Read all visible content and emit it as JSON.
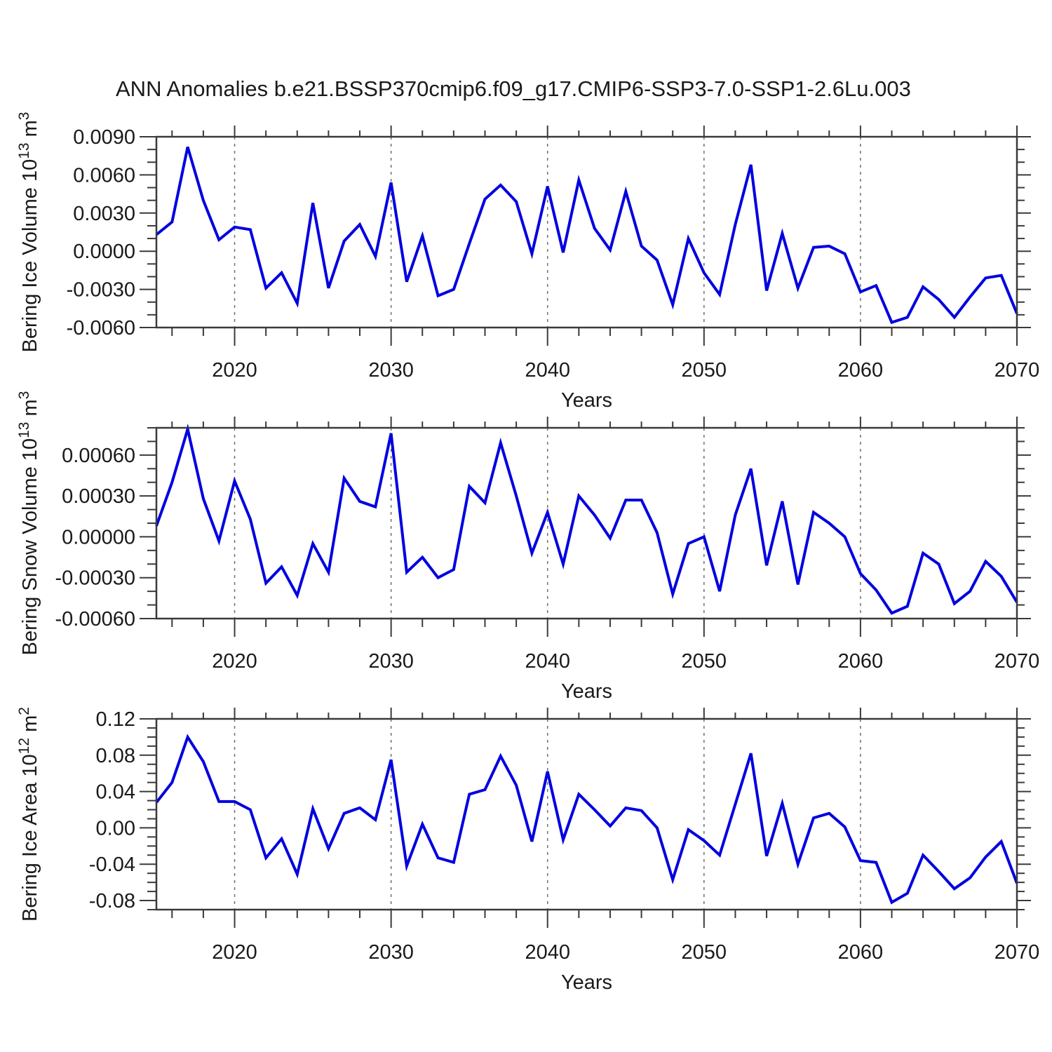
{
  "figure": {
    "title": "ANN Anomalies b.e21.BSSP370cmip6.f09_g17.CMIP6-SSP3-7.0-SSP1-2.6Lu.003"
  },
  "colors": {
    "line": "#0000e0",
    "axis": "#3a3a3a",
    "text": "#1a1a1a",
    "grid": "#6e6e6e",
    "background": "#ffffff"
  },
  "chart_data": [
    {
      "type": "line",
      "name": "bering-ice-volume",
      "ylabel_parts": [
        {
          "text": "Bering Ice Volume 10",
          "sup": false
        },
        {
          "text": "13",
          "sup": true
        },
        {
          "text": " m",
          "sup": false
        },
        {
          "text": "3",
          "sup": true
        }
      ],
      "xlabel": "Years",
      "xlim": [
        2015,
        2070
      ],
      "ylim": [
        -0.006,
        0.009
      ],
      "xtick_values": [
        2020,
        2030,
        2040,
        2050,
        2060,
        2070
      ],
      "xtick_labels": [
        "2020",
        "2030",
        "2040",
        "2050",
        "2060",
        "2070"
      ],
      "x_minor_step": 2,
      "ytick_values": [
        0.009,
        0.006,
        0.003,
        0.0,
        -0.003,
        -0.006
      ],
      "ytick_labels": [
        "0.0090",
        "0.0060",
        "0.0030",
        "0.0000",
        "-0.0030",
        "-0.0060"
      ],
      "y_minor_step": 0.001,
      "grid_years": [
        2020,
        2030,
        2040,
        2050,
        2060
      ],
      "x": [
        2015,
        2016,
        2017,
        2018,
        2019,
        2020,
        2021,
        2022,
        2023,
        2024,
        2025,
        2026,
        2027,
        2028,
        2029,
        2030,
        2031,
        2032,
        2033,
        2034,
        2035,
        2036,
        2037,
        2038,
        2039,
        2040,
        2041,
        2042,
        2043,
        2044,
        2045,
        2046,
        2047,
        2048,
        2049,
        2050,
        2051,
        2052,
        2053,
        2054,
        2055,
        2056,
        2057,
        2058,
        2059,
        2060,
        2061,
        2062,
        2063,
        2064,
        2065,
        2066,
        2067,
        2068,
        2069,
        2070
      ],
      "values": [
        0.0013,
        0.0023,
        0.0082,
        0.004,
        0.0009,
        0.0019,
        0.0017,
        -0.0029,
        -0.0017,
        -0.0041,
        0.0038,
        -0.0029,
        0.0008,
        0.0021,
        -0.0004,
        0.0054,
        -0.0024,
        0.0012,
        -0.0035,
        -0.003,
        0.0006,
        0.0041,
        0.0052,
        0.0039,
        -0.0002,
        0.0051,
        -0.0001,
        0.0056,
        0.0018,
        0.0001,
        0.0047,
        0.0004,
        -0.0007,
        -0.0042,
        0.001,
        -0.0017,
        -0.0034,
        0.0021,
        0.0068,
        -0.0031,
        0.0014,
        -0.0029,
        0.0003,
        0.0004,
        -0.0002,
        -0.0032,
        -0.0027,
        -0.0056,
        -0.0052,
        -0.0028,
        -0.0038,
        -0.0052,
        -0.0036,
        -0.0021,
        -0.0019,
        -0.0049
      ]
    },
    {
      "type": "line",
      "name": "bering-snow-volume",
      "ylabel_parts": [
        {
          "text": "Bering Snow Volume 10",
          "sup": false
        },
        {
          "text": "13",
          "sup": true
        },
        {
          "text": " m",
          "sup": false
        },
        {
          "text": "3",
          "sup": true
        }
      ],
      "xlabel": "Years",
      "xlim": [
        2015,
        2070
      ],
      "ylim": [
        -0.0006,
        0.0008
      ],
      "xtick_values": [
        2020,
        2030,
        2040,
        2050,
        2060,
        2070
      ],
      "xtick_labels": [
        "2020",
        "2030",
        "2040",
        "2050",
        "2060",
        "2070"
      ],
      "x_minor_step": 2,
      "ytick_values": [
        0.0006,
        0.0003,
        0.0,
        -0.0003,
        -0.0006
      ],
      "ytick_labels": [
        "0.00060",
        "0.00030",
        "0.00000",
        "-0.00030",
        "-0.00060"
      ],
      "y_minor_step": 0.0001,
      "grid_years": [
        2020,
        2030,
        2040,
        2050,
        2060
      ],
      "x": [
        2015,
        2016,
        2017,
        2018,
        2019,
        2020,
        2021,
        2022,
        2023,
        2024,
        2025,
        2026,
        2027,
        2028,
        2029,
        2030,
        2031,
        2032,
        2033,
        2034,
        2035,
        2036,
        2037,
        2038,
        2039,
        2040,
        2041,
        2042,
        2043,
        2044,
        2045,
        2046,
        2047,
        2048,
        2049,
        2050,
        2051,
        2052,
        2053,
        2054,
        2055,
        2056,
        2057,
        2058,
        2059,
        2060,
        2061,
        2062,
        2063,
        2064,
        2065,
        2066,
        2067,
        2068,
        2069,
        2070
      ],
      "values": [
        8e-05,
        0.0004,
        0.00079,
        0.00028,
        -3e-05,
        0.00041,
        0.00013,
        -0.00034,
        -0.00022,
        -0.00043,
        -5e-05,
        -0.00026,
        0.00043,
        0.00026,
        0.00022,
        0.00076,
        -0.00026,
        -0.00015,
        -0.0003,
        -0.00024,
        0.00037,
        0.00025,
        0.00069,
        0.0003,
        -0.00012,
        0.00018,
        -0.0002,
        0.0003,
        0.00016,
        -1e-05,
        0.00027,
        0.00027,
        3e-05,
        -0.00042,
        -5e-05,
        0.0,
        -0.0004,
        0.00016,
        0.0005,
        -0.00021,
        0.00026,
        -0.00035,
        0.00018,
        0.0001,
        0.0,
        -0.00027,
        -0.00039,
        -0.00056,
        -0.00051,
        -0.00012,
        -0.0002,
        -0.00049,
        -0.0004,
        -0.00018,
        -0.00029,
        -0.00048
      ]
    },
    {
      "type": "line",
      "name": "bering-ice-area",
      "ylabel_parts": [
        {
          "text": "Bering Ice Area 10",
          "sup": false
        },
        {
          "text": "12",
          "sup": true
        },
        {
          "text": " m",
          "sup": false
        },
        {
          "text": "2",
          "sup": true
        }
      ],
      "xlabel": "Years",
      "xlim": [
        2015,
        2070
      ],
      "ylim": [
        -0.09,
        0.12
      ],
      "xtick_values": [
        2020,
        2030,
        2040,
        2050,
        2060,
        2070
      ],
      "xtick_labels": [
        "2020",
        "2030",
        "2040",
        "2050",
        "2060",
        "2070"
      ],
      "x_minor_step": 2,
      "ytick_values": [
        0.12,
        0.08,
        0.04,
        0.0,
        -0.04,
        -0.08
      ],
      "ytick_labels": [
        "0.12",
        "0.08",
        "0.04",
        "0.00",
        "-0.04",
        "-0.08"
      ],
      "y_minor_step": 0.01,
      "grid_years": [
        2020,
        2030,
        2040,
        2050,
        2060
      ],
      "x": [
        2015,
        2016,
        2017,
        2018,
        2019,
        2020,
        2021,
        2022,
        2023,
        2024,
        2025,
        2026,
        2027,
        2028,
        2029,
        2030,
        2031,
        2032,
        2033,
        2034,
        2035,
        2036,
        2037,
        2038,
        2039,
        2040,
        2041,
        2042,
        2043,
        2044,
        2045,
        2046,
        2047,
        2048,
        2049,
        2050,
        2051,
        2052,
        2053,
        2054,
        2055,
        2056,
        2057,
        2058,
        2059,
        2060,
        2061,
        2062,
        2063,
        2064,
        2065,
        2066,
        2067,
        2068,
        2069,
        2070
      ],
      "values": [
        0.028,
        0.05,
        0.1,
        0.073,
        0.029,
        0.029,
        0.02,
        -0.033,
        -0.012,
        -0.051,
        0.021,
        -0.023,
        0.016,
        0.022,
        0.009,
        0.075,
        -0.042,
        0.004,
        -0.033,
        -0.038,
        0.037,
        0.042,
        0.079,
        0.047,
        -0.015,
        0.062,
        -0.013,
        0.037,
        0.02,
        0.002,
        0.022,
        0.019,
        0.0,
        -0.057,
        -0.002,
        -0.014,
        -0.03,
        0.026,
        0.082,
        -0.031,
        0.027,
        -0.04,
        0.011,
        0.016,
        0.001,
        -0.036,
        -0.038,
        -0.082,
        -0.072,
        -0.03,
        -0.048,
        -0.067,
        -0.055,
        -0.032,
        -0.015,
        -0.061
      ]
    }
  ]
}
